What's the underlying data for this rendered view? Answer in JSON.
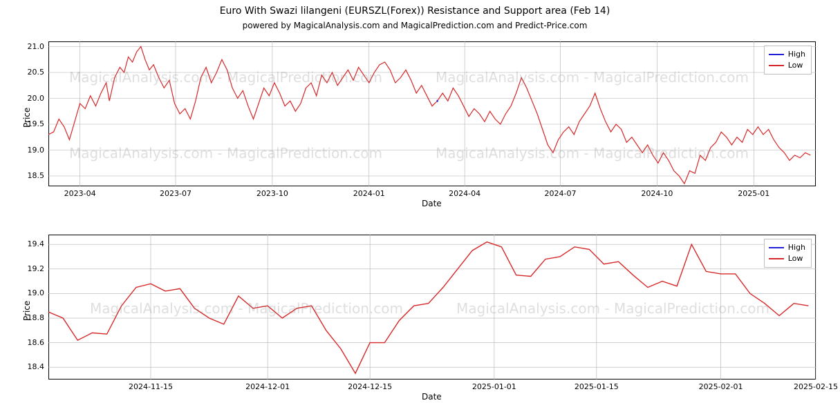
{
  "title": "Euro With Swazi lilangeni (EURSZL(Forex)) Resistance and Support area (Feb 14)",
  "title_fontsize": 14,
  "subtitle": "powered by MagicalAnalysis.com and MagicalPrediction.com and Predict-Price.com",
  "subtitle_fontsize": 12,
  "background_color": "#ffffff",
  "text_color": "#000000",
  "grid_color": "#b0b0b0",
  "border_color": "#000000",
  "watermark_text": "MagicalAnalysis.com - MagicalPrediction.com",
  "watermark_color": "#808080",
  "watermark_opacity": 0.25,
  "watermark_fontsize": 20,
  "legend": {
    "items": [
      {
        "label": "High",
        "color": "#1f1fd6"
      },
      {
        "label": "Low",
        "color": "#d62728"
      }
    ],
    "border_color": "#bfbfbf"
  },
  "top_chart": {
    "type": "line",
    "ylabel": "Price",
    "xlabel": "Date",
    "label_fontsize": 12,
    "ylim": [
      18.3,
      21.1
    ],
    "ytick_step": 0.5,
    "yticks": [
      18.5,
      19.0,
      19.5,
      20.0,
      20.5,
      21.0
    ],
    "x_domain": [
      0,
      730
    ],
    "x_ticks": [
      {
        "pos": 30,
        "label": "2023-04"
      },
      {
        "pos": 121,
        "label": "2023-07"
      },
      {
        "pos": 213,
        "label": "2023-10"
      },
      {
        "pos": 305,
        "label": "2024-01"
      },
      {
        "pos": 396,
        "label": "2024-04"
      },
      {
        "pos": 487,
        "label": "2024-07"
      },
      {
        "pos": 579,
        "label": "2024-10"
      },
      {
        "pos": 671,
        "label": "2025-01"
      }
    ],
    "line_color_high": "#1f1fd6",
    "line_color_low": "#d62728",
    "line_width": 1.2,
    "high_series": [
      [
        370,
        19.95
      ]
    ],
    "low_series": [
      [
        0,
        19.3
      ],
      [
        5,
        19.35
      ],
      [
        10,
        19.6
      ],
      [
        15,
        19.45
      ],
      [
        20,
        19.2
      ],
      [
        25,
        19.55
      ],
      [
        30,
        19.9
      ],
      [
        35,
        19.8
      ],
      [
        40,
        20.05
      ],
      [
        45,
        19.85
      ],
      [
        50,
        20.1
      ],
      [
        55,
        20.3
      ],
      [
        58,
        19.95
      ],
      [
        63,
        20.4
      ],
      [
        68,
        20.6
      ],
      [
        72,
        20.5
      ],
      [
        76,
        20.8
      ],
      [
        80,
        20.7
      ],
      [
        84,
        20.9
      ],
      [
        88,
        21.0
      ],
      [
        92,
        20.75
      ],
      [
        96,
        20.55
      ],
      [
        100,
        20.65
      ],
      [
        105,
        20.4
      ],
      [
        110,
        20.2
      ],
      [
        115,
        20.35
      ],
      [
        120,
        19.9
      ],
      [
        125,
        19.7
      ],
      [
        130,
        19.8
      ],
      [
        135,
        19.6
      ],
      [
        140,
        19.95
      ],
      [
        145,
        20.4
      ],
      [
        150,
        20.6
      ],
      [
        155,
        20.3
      ],
      [
        160,
        20.5
      ],
      [
        165,
        20.75
      ],
      [
        170,
        20.55
      ],
      [
        175,
        20.2
      ],
      [
        180,
        20.0
      ],
      [
        185,
        20.15
      ],
      [
        190,
        19.85
      ],
      [
        195,
        19.6
      ],
      [
        200,
        19.9
      ],
      [
        205,
        20.2
      ],
      [
        210,
        20.05
      ],
      [
        215,
        20.3
      ],
      [
        220,
        20.1
      ],
      [
        225,
        19.85
      ],
      [
        230,
        19.95
      ],
      [
        235,
        19.75
      ],
      [
        240,
        19.9
      ],
      [
        245,
        20.2
      ],
      [
        250,
        20.3
      ],
      [
        255,
        20.05
      ],
      [
        260,
        20.45
      ],
      [
        265,
        20.3
      ],
      [
        270,
        20.5
      ],
      [
        275,
        20.25
      ],
      [
        280,
        20.4
      ],
      [
        285,
        20.55
      ],
      [
        290,
        20.35
      ],
      [
        295,
        20.6
      ],
      [
        300,
        20.45
      ],
      [
        305,
        20.3
      ],
      [
        310,
        20.5
      ],
      [
        315,
        20.65
      ],
      [
        320,
        20.7
      ],
      [
        325,
        20.55
      ],
      [
        330,
        20.3
      ],
      [
        335,
        20.4
      ],
      [
        340,
        20.55
      ],
      [
        345,
        20.35
      ],
      [
        350,
        20.1
      ],
      [
        355,
        20.25
      ],
      [
        360,
        20.05
      ],
      [
        365,
        19.85
      ],
      [
        370,
        19.95
      ],
      [
        375,
        20.1
      ],
      [
        380,
        19.95
      ],
      [
        385,
        20.2
      ],
      [
        390,
        20.05
      ],
      [
        395,
        19.85
      ],
      [
        400,
        19.65
      ],
      [
        405,
        19.8
      ],
      [
        410,
        19.7
      ],
      [
        415,
        19.55
      ],
      [
        420,
        19.75
      ],
      [
        425,
        19.6
      ],
      [
        430,
        19.5
      ],
      [
        435,
        19.7
      ],
      [
        440,
        19.85
      ],
      [
        445,
        20.1
      ],
      [
        450,
        20.4
      ],
      [
        455,
        20.2
      ],
      [
        460,
        19.95
      ],
      [
        465,
        19.7
      ],
      [
        470,
        19.4
      ],
      [
        475,
        19.1
      ],
      [
        480,
        18.95
      ],
      [
        485,
        19.2
      ],
      [
        490,
        19.35
      ],
      [
        495,
        19.45
      ],
      [
        500,
        19.3
      ],
      [
        505,
        19.55
      ],
      [
        510,
        19.7
      ],
      [
        515,
        19.85
      ],
      [
        520,
        20.1
      ],
      [
        525,
        19.8
      ],
      [
        530,
        19.55
      ],
      [
        535,
        19.35
      ],
      [
        540,
        19.5
      ],
      [
        545,
        19.4
      ],
      [
        550,
        19.15
      ],
      [
        555,
        19.25
      ],
      [
        560,
        19.1
      ],
      [
        565,
        18.95
      ],
      [
        570,
        19.1
      ],
      [
        575,
        18.9
      ],
      [
        580,
        18.75
      ],
      [
        585,
        18.95
      ],
      [
        590,
        18.8
      ],
      [
        595,
        18.6
      ],
      [
        600,
        18.5
      ],
      [
        605,
        18.35
      ],
      [
        610,
        18.6
      ],
      [
        615,
        18.55
      ],
      [
        620,
        18.9
      ],
      [
        625,
        18.8
      ],
      [
        630,
        19.05
      ],
      [
        635,
        19.15
      ],
      [
        640,
        19.35
      ],
      [
        645,
        19.25
      ],
      [
        650,
        19.1
      ],
      [
        655,
        19.25
      ],
      [
        660,
        19.15
      ],
      [
        665,
        19.4
      ],
      [
        670,
        19.3
      ],
      [
        675,
        19.45
      ],
      [
        680,
        19.3
      ],
      [
        685,
        19.4
      ],
      [
        690,
        19.2
      ],
      [
        695,
        19.05
      ],
      [
        700,
        18.95
      ],
      [
        705,
        18.8
      ],
      [
        710,
        18.9
      ],
      [
        715,
        18.85
      ],
      [
        720,
        18.95
      ],
      [
        725,
        18.9
      ]
    ]
  },
  "bottom_chart": {
    "type": "line",
    "ylabel": "Price",
    "xlabel": "Date",
    "label_fontsize": 12,
    "ylim": [
      18.3,
      19.48
    ],
    "ytick_step": 0.2,
    "yticks": [
      18.4,
      18.6,
      18.8,
      19.0,
      19.2,
      19.4
    ],
    "x_domain": [
      0,
      105
    ],
    "x_ticks": [
      {
        "pos": 14,
        "label": "2024-11-15"
      },
      {
        "pos": 30,
        "label": "2024-12-01"
      },
      {
        "pos": 44,
        "label": "2024-12-15"
      },
      {
        "pos": 61,
        "label": "2025-01-01"
      },
      {
        "pos": 75,
        "label": "2025-01-15"
      },
      {
        "pos": 92,
        "label": "2025-02-01"
      },
      {
        "pos": 105,
        "label": "2025-02-15"
      }
    ],
    "line_color_high": "#1f1fd6",
    "line_color_low": "#d62728",
    "line_width": 1.4,
    "low_series": [
      [
        0,
        18.85
      ],
      [
        2,
        18.8
      ],
      [
        4,
        18.62
      ],
      [
        6,
        18.68
      ],
      [
        8,
        18.67
      ],
      [
        10,
        18.9
      ],
      [
        12,
        19.05
      ],
      [
        14,
        19.08
      ],
      [
        16,
        19.02
      ],
      [
        18,
        19.04
      ],
      [
        20,
        18.88
      ],
      [
        22,
        18.8
      ],
      [
        24,
        18.75
      ],
      [
        26,
        18.98
      ],
      [
        28,
        18.88
      ],
      [
        30,
        18.9
      ],
      [
        32,
        18.8
      ],
      [
        34,
        18.88
      ],
      [
        36,
        18.9
      ],
      [
        38,
        18.7
      ],
      [
        40,
        18.55
      ],
      [
        42,
        18.35
      ],
      [
        44,
        18.6
      ],
      [
        46,
        18.6
      ],
      [
        48,
        18.78
      ],
      [
        50,
        18.9
      ],
      [
        52,
        18.92
      ],
      [
        54,
        19.05
      ],
      [
        56,
        19.2
      ],
      [
        58,
        19.35
      ],
      [
        60,
        19.42
      ],
      [
        62,
        19.38
      ],
      [
        64,
        19.15
      ],
      [
        66,
        19.14
      ],
      [
        68,
        19.28
      ],
      [
        70,
        19.3
      ],
      [
        72,
        19.38
      ],
      [
        74,
        19.36
      ],
      [
        76,
        19.24
      ],
      [
        78,
        19.26
      ],
      [
        80,
        19.15
      ],
      [
        82,
        19.05
      ],
      [
        84,
        19.1
      ],
      [
        86,
        19.06
      ],
      [
        88,
        19.4
      ],
      [
        90,
        19.18
      ],
      [
        92,
        19.16
      ],
      [
        94,
        19.16
      ],
      [
        96,
        19.0
      ],
      [
        98,
        18.92
      ],
      [
        100,
        18.82
      ],
      [
        102,
        18.92
      ],
      [
        104,
        18.9
      ]
    ]
  }
}
